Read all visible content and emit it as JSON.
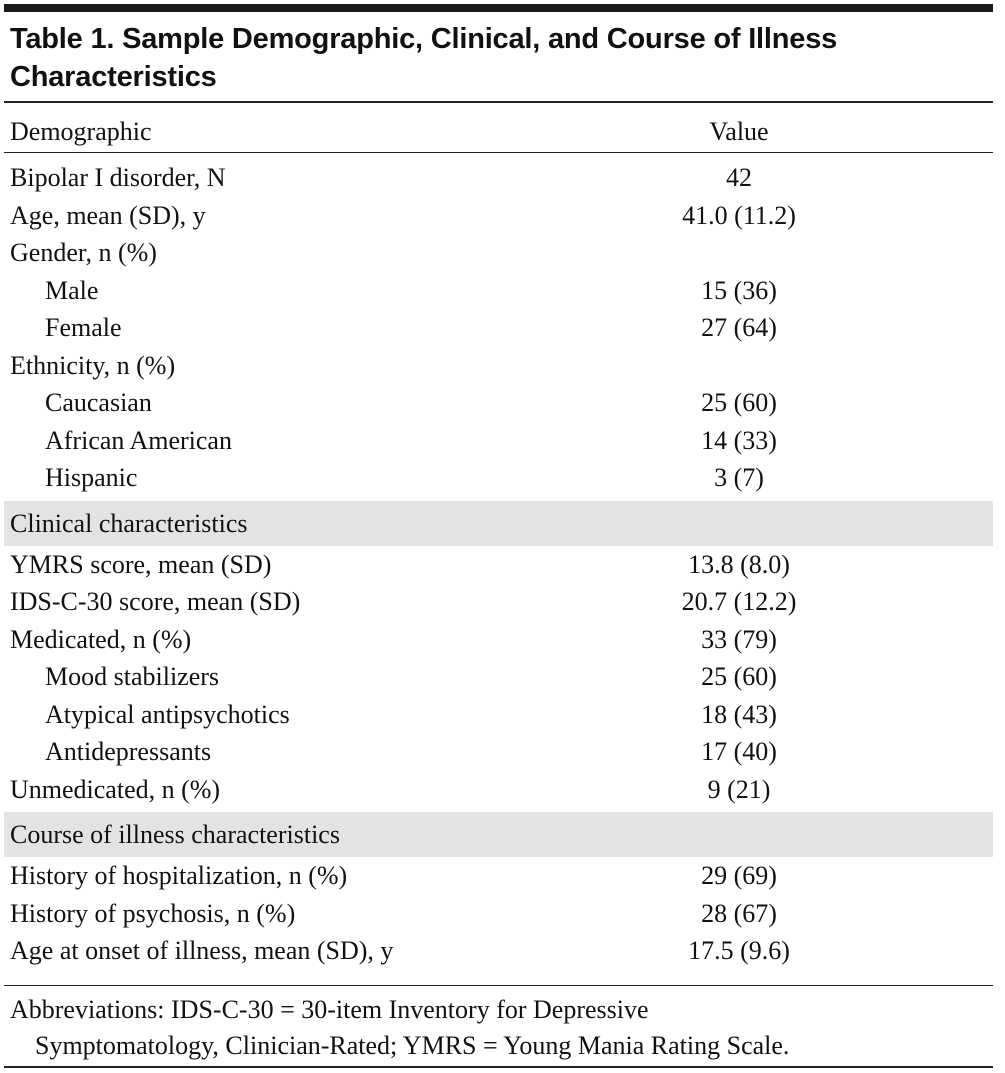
{
  "table": {
    "title": "Table 1. Sample Demographic, Clinical, and Course of Illness Characteristics",
    "columns": [
      "Demographic",
      "Value"
    ],
    "sections": [
      {
        "rows": [
          {
            "label": "Bipolar I disorder, N",
            "value": "42"
          },
          {
            "label": "Age, mean (SD), y",
            "value": "41.0 (11.2)"
          },
          {
            "label": "Gender, n (%)",
            "children": [
              {
                "label": "Male",
                "value": "15 (36)"
              },
              {
                "label": "Female",
                "value": "27 (64)"
              }
            ]
          },
          {
            "label": "Ethnicity, n (%)",
            "children": [
              {
                "label": "Caucasian",
                "value": "25 (60)"
              },
              {
                "label": "African American",
                "value": "14 (33)"
              },
              {
                "label": "Hispanic",
                "value": "3 (7)"
              }
            ]
          }
        ]
      },
      {
        "heading": "Clinical characteristics",
        "rows": [
          {
            "label": "YMRS score, mean (SD)",
            "value": "13.8 (8.0)"
          },
          {
            "label": "IDS-C-30 score,  mean (SD)",
            "value": "20.7 (12.2)"
          },
          {
            "label": "Medicated, n (%)",
            "value": "33 (79)",
            "children": [
              {
                "label": "Mood stabilizers",
                "value": "25 (60)"
              },
              {
                "label": "Atypical antipsychotics",
                "value": "18 (43)"
              },
              {
                "label": "Antidepressants",
                "value": "17 (40)"
              }
            ]
          },
          {
            "label": "Unmedicated, n (%)",
            "value": "9 (21)"
          }
        ]
      },
      {
        "heading": "Course of illness characteristics",
        "rows": [
          {
            "label": "History of hospitalization, n (%)",
            "value": "29 (69)"
          },
          {
            "label": "History of psychosis, n (%)",
            "value": "28 (67)"
          },
          {
            "label": "Age at onset of illness, mean (SD), y",
            "value": "17.5 (9.6)"
          }
        ]
      }
    ],
    "footnote": [
      "Abbreviations: IDS-C-30 = 30-item Inventory for Depressive",
      "Symptomatology, Clinician-Rated; YMRS = Young Mania Rating Scale."
    ]
  }
}
